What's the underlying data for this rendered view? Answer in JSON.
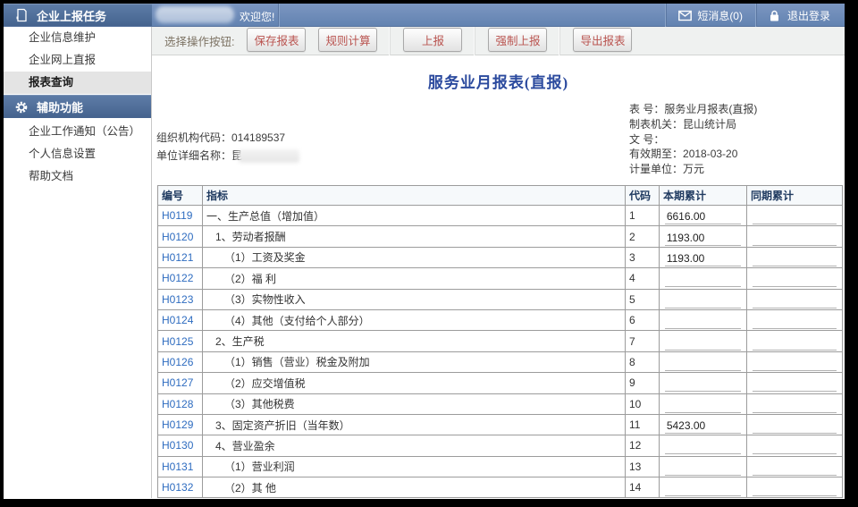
{
  "topbar": {
    "welcome_suffix": "欢迎您!",
    "messages_label": "短消息(0)",
    "logout_label": "退出登录",
    "icons": {
      "messages": "envelope-icon",
      "logout": "lock-icon"
    }
  },
  "sidebar": {
    "sections": [
      {
        "title": "企业上报任务",
        "icon": "clipboard-plus-icon",
        "items": [
          "企业信息维护",
          "企业网上直报",
          "报表查询"
        ]
      },
      {
        "title": "辅助功能",
        "icon": "gear-icon",
        "items": [
          "企业工作通知（公告）",
          "个人信息设置",
          "帮助文档"
        ]
      }
    ],
    "selected_item": "报表查询"
  },
  "toolbar": {
    "label": "选择操作按钮:",
    "buttons": [
      "保存报表",
      "规则计算",
      "上报",
      "强制上报",
      "导出报表"
    ],
    "separators_before": [
      2,
      3,
      4
    ]
  },
  "report": {
    "title": "服务业月报表(直报)",
    "org_code_label": "组织机构代码：",
    "org_code": "014189537",
    "unit_name_label": "单位详细名称：",
    "unit_name_visible": "昆",
    "meta": [
      {
        "label": "表 号：",
        "value": "服务业月报表(直报)"
      },
      {
        "label": "制表机关：",
        "value": "昆山统计局"
      },
      {
        "label": "文 号：",
        "value": ""
      },
      {
        "label": "有效期至：",
        "value": "2018-03-20"
      },
      {
        "label": "计量单位：",
        "value": "万元"
      }
    ]
  },
  "table": {
    "headers": [
      "编号",
      "指标",
      "代码",
      "本期累计",
      "同期累计"
    ],
    "rows": [
      {
        "id": "H0119",
        "indicator": "一、生产总值（增加值）",
        "indent": 0,
        "code": "1",
        "current": "6616.00",
        "previous": ""
      },
      {
        "id": "H0120",
        "indicator": "1、劳动者报酬",
        "indent": 1,
        "code": "2",
        "current": "1193.00",
        "previous": ""
      },
      {
        "id": "H0121",
        "indicator": "（1）工资及奖金",
        "indent": 2,
        "code": "3",
        "current": "1193.00",
        "previous": ""
      },
      {
        "id": "H0122",
        "indicator": "（2）福 利",
        "indent": 2,
        "code": "4",
        "current": "",
        "previous": ""
      },
      {
        "id": "H0123",
        "indicator": "（3）实物性收入",
        "indent": 2,
        "code": "5",
        "current": "",
        "previous": ""
      },
      {
        "id": "H0124",
        "indicator": "（4）其他（支付给个人部分）",
        "indent": 2,
        "code": "6",
        "current": "",
        "previous": ""
      },
      {
        "id": "H0125",
        "indicator": "2、生产税",
        "indent": 1,
        "code": "7",
        "current": "",
        "previous": ""
      },
      {
        "id": "H0126",
        "indicator": "（1）销售（营业）税金及附加",
        "indent": 2,
        "code": "8",
        "current": "",
        "previous": ""
      },
      {
        "id": "H0127",
        "indicator": "（2）应交增值税",
        "indent": 2,
        "code": "9",
        "current": "",
        "previous": ""
      },
      {
        "id": "H0128",
        "indicator": "（3）其他税费",
        "indent": 2,
        "code": "10",
        "current": "",
        "previous": ""
      },
      {
        "id": "H0129",
        "indicator": "3、固定资产折旧（当年数）",
        "indent": 1,
        "code": "11",
        "current": "5423.00",
        "previous": ""
      },
      {
        "id": "H0130",
        "indicator": "4、营业盈余",
        "indent": 1,
        "code": "12",
        "current": "",
        "previous": ""
      },
      {
        "id": "H0131",
        "indicator": "（1）营业利润",
        "indent": 2,
        "code": "13",
        "current": "",
        "previous": ""
      },
      {
        "id": "H0132",
        "indicator": "（2）其 他",
        "indent": 2,
        "code": "14",
        "current": "",
        "previous": ""
      }
    ]
  },
  "colors": {
    "topbar_blue": "#6f8db9",
    "section_header_blue": "#45638e",
    "title_blue": "#2b4a9e",
    "row_link_blue": "#2e6cc0",
    "button_text_red": "#b9534f",
    "toolbar_bg": "#eff1f0"
  }
}
